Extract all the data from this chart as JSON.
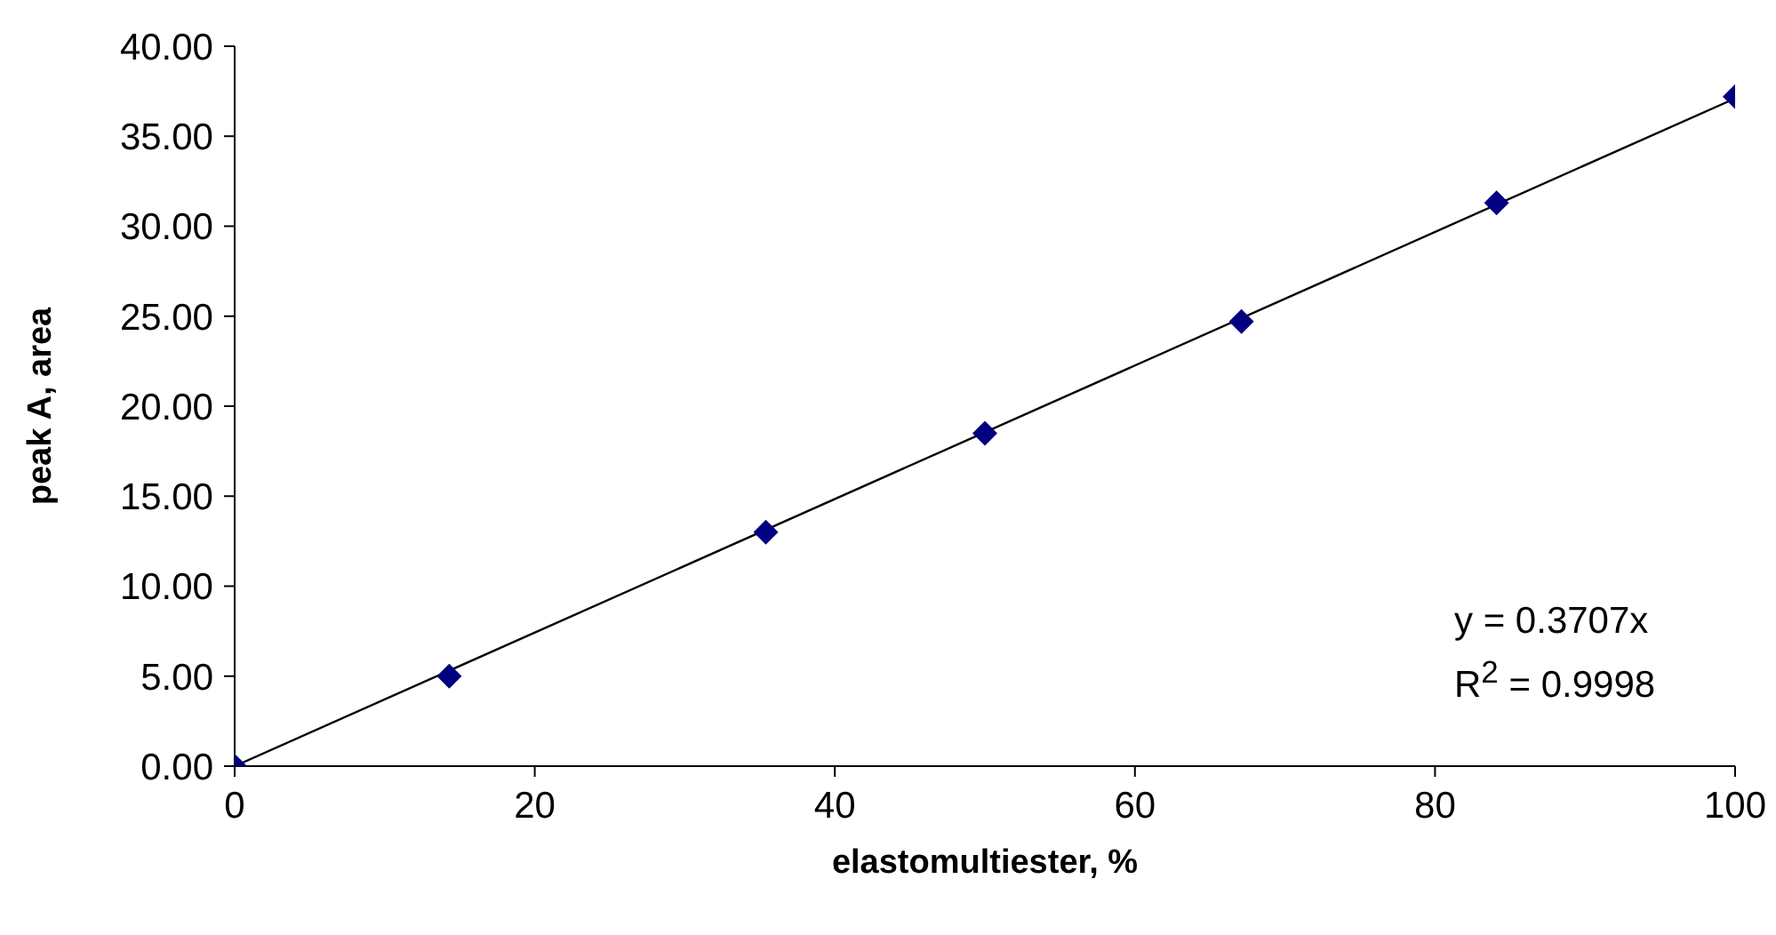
{
  "chart_data": {
    "type": "scatter",
    "xlabel": "elastomultiester, %",
    "ylabel": "peak A, area",
    "x": [
      0,
      14.3,
      35.4,
      50,
      67.1,
      84.1,
      100
    ],
    "series": [
      {
        "color": "#000080",
        "marker": "diamond",
        "values": [
          0,
          5.0,
          13.0,
          18.5,
          24.7,
          31.3,
          37.2
        ]
      },
      {
        "type": "line",
        "color": "#000000",
        "marker": "none",
        "x": [
          0,
          100
        ],
        "values": [
          0,
          37.1
        ]
      }
    ],
    "xlim": [
      0,
      100
    ],
    "xticks": [
      0,
      20,
      40,
      60,
      80,
      100
    ],
    "ylim": [
      0,
      40
    ],
    "yticks": [
      {
        "value": 0,
        "label": "0.00"
      },
      {
        "value": 5,
        "label": "5.00"
      },
      {
        "value": 10,
        "label": "10.00"
      },
      {
        "value": 15,
        "label": "15.00"
      },
      {
        "value": 20,
        "label": "20.00"
      },
      {
        "value": 25,
        "label": "25.00"
      },
      {
        "value": 30,
        "label": "30.00"
      },
      {
        "value": 35,
        "label": "35.00"
      },
      {
        "value": 40,
        "label": "40.00"
      }
    ],
    "grid": false,
    "legend": false,
    "annotations": [
      "y = 0.3707x",
      "R$^{2}$ = 0.9998"
    ]
  }
}
